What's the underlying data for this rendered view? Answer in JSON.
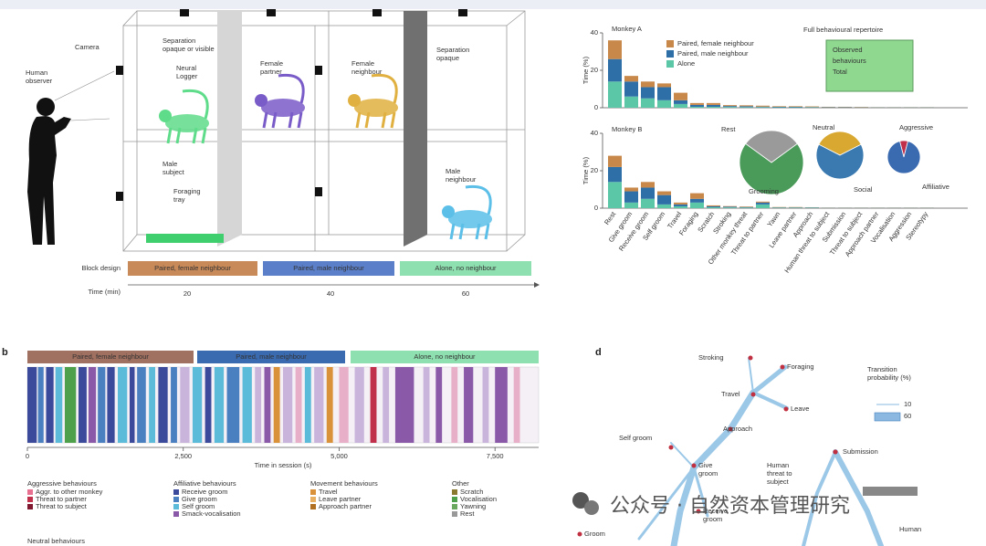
{
  "panel_a": {
    "labels": {
      "camera": "Camera",
      "observer": [
        "Human",
        "observer"
      ],
      "separation": [
        "Separation",
        "opaque or visible"
      ],
      "logger": [
        "Neural",
        "Logger"
      ],
      "female_partner": [
        "Female",
        "partner"
      ],
      "female_neighbour": [
        "Female",
        "neighbour"
      ],
      "separation2": [
        "Separation",
        "opaque"
      ],
      "subject": [
        "Male",
        "subject"
      ],
      "tray": [
        "Foraging",
        "tray"
      ],
      "male_neighbour": [
        "Male",
        "neighbour"
      ]
    },
    "block_design": {
      "label": "Block design",
      "blocks": [
        "Paired, female neighbour",
        "Paired, male neighbour",
        "Alone, no neighbour"
      ]
    },
    "time": {
      "label": "Time (min)",
      "ticks": [
        "20",
        "40",
        "60"
      ]
    }
  },
  "chart_data": [
    {
      "type": "bar",
      "title": "Monkey A",
      "ylabel": "Time (%)",
      "ylim": [
        0,
        40
      ],
      "yticks": [
        0,
        20,
        40
      ],
      "legend": "top-left",
      "series": [
        {
          "name": "Alone",
          "color": "#5cc7a6",
          "values": [
            14,
            6,
            5,
            4,
            2,
            0.5,
            0.5,
            0.4,
            0.3,
            0.3,
            0.2,
            0.2,
            0.2,
            0.1,
            0.1,
            0.1,
            0.1,
            0.1,
            0.1,
            0.1
          ]
        },
        {
          "name": "Paired, male neighbour",
          "color": "#2f6fa8",
          "values": [
            12,
            8,
            6,
            7,
            2,
            1,
            1,
            0.5,
            0.5,
            0.3,
            0.3,
            0.3,
            0.2,
            0.2,
            0.2,
            0.1,
            0.1,
            0.1,
            0.1,
            0.1
          ]
        },
        {
          "name": "Paired, female neighbour",
          "color": "#c8884a",
          "values": [
            10,
            3,
            3,
            2,
            4,
            1,
            1,
            0.5,
            0.5,
            0.5,
            0.3,
            0.3,
            0.3,
            0.2,
            0.2,
            0.2,
            0.1,
            0.1,
            0.1,
            0.1
          ]
        }
      ],
      "annotation": "Full behavioural repertoire",
      "box": [
        "Observed",
        "behaviours",
        "Total"
      ]
    },
    {
      "type": "bar",
      "title": "Monkey B",
      "ylabel": "Time (%)",
      "ylim": [
        0,
        40
      ],
      "yticks": [
        0,
        20,
        40
      ],
      "categories": [
        "Rest",
        "Give groom",
        "Receive groom",
        "Self groom",
        "Travel",
        "Foraging",
        "Scratch",
        "Stroking",
        "Other monkey threat",
        "Threat to partner",
        "Yawn",
        "Leave partner",
        "Approach",
        "Human threat to subject",
        "Submission",
        "Threat to subject",
        "Approach partner",
        "Vocalisation",
        "Aggression",
        "Stereotypy"
      ],
      "series": [
        {
          "name": "Alone",
          "color": "#5cc7a6",
          "values": [
            14,
            3,
            5,
            2,
            1,
            3,
            0.5,
            0.4,
            0.3,
            2,
            0.2,
            0.2,
            0.2,
            0.1,
            0.1,
            0.1,
            0.1,
            0.1,
            0.1,
            0.1
          ]
        },
        {
          "name": "Paired, male neighbour",
          "color": "#2f6fa8",
          "values": [
            8,
            6,
            6,
            5,
            1,
            2,
            0.5,
            0.4,
            0.3,
            1,
            0.2,
            0.2,
            0.2,
            0.1,
            0.1,
            0.1,
            0.1,
            0.1,
            0.1,
            0.1
          ]
        },
        {
          "name": "Paired, female neighbour",
          "color": "#c8884a",
          "values": [
            6,
            2,
            3,
            2,
            1,
            3,
            0.5,
            0.3,
            0.3,
            0.5,
            0.2,
            0.2,
            0.1,
            0.1,
            0.1,
            0.1,
            0.1,
            0.1,
            0.1,
            0.1
          ]
        }
      ]
    },
    {
      "type": "pie",
      "categories": [
        "Rest",
        "Grooming"
      ],
      "values": [
        30,
        70
      ],
      "colors": [
        "#9a9a9a",
        "#4a9a5a"
      ]
    },
    {
      "type": "pie",
      "categories": [
        "Neutral",
        "Social"
      ],
      "values": [
        35,
        65
      ],
      "colors": [
        "#d8a830",
        "#3a7ab0"
      ]
    },
    {
      "type": "pie",
      "categories": [
        "Aggressive",
        "Affiliative"
      ],
      "values": [
        8,
        92
      ],
      "colors": [
        "#c0304a",
        "#3a6ab0"
      ]
    }
  ],
  "panel_b": {
    "letter": "b",
    "blocks": [
      "Paired, female neighbour",
      "Paired, male neighbour",
      "Alone, no neighbour"
    ],
    "xlabel": "Time in session (s)",
    "xlim": [
      0,
      8200
    ],
    "xticks": [
      0,
      {
        "value": 2500,
        "label": "2,500"
      },
      {
        "value": 5000,
        "label": "5,000"
      },
      {
        "value": 7500,
        "label": "7,500"
      }
    ],
    "segments": [
      {
        "start": 0,
        "end": 150,
        "color": "#3b4a9a"
      },
      {
        "start": 170,
        "end": 260,
        "color": "#4a7fc0"
      },
      {
        "start": 300,
        "end": 420,
        "color": "#3b4a9a"
      },
      {
        "start": 450,
        "end": 560,
        "color": "#5bbbd8"
      },
      {
        "start": 600,
        "end": 780,
        "color": "#4fa04a"
      },
      {
        "start": 820,
        "end": 950,
        "color": "#3b4a9a"
      },
      {
        "start": 980,
        "end": 1100,
        "color": "#8a5aa8"
      },
      {
        "start": 1130,
        "end": 1250,
        "color": "#4a7fc0"
      },
      {
        "start": 1280,
        "end": 1400,
        "color": "#3b4a9a"
      },
      {
        "start": 1450,
        "end": 1600,
        "color": "#5bbbd8"
      },
      {
        "start": 1640,
        "end": 1720,
        "color": "#3b4a9a"
      },
      {
        "start": 1760,
        "end": 1900,
        "color": "#4a7fc0"
      },
      {
        "start": 1950,
        "end": 2050,
        "color": "#5bbbd8"
      },
      {
        "start": 2100,
        "end": 2250,
        "color": "#3b4a9a"
      },
      {
        "start": 2300,
        "end": 2400,
        "color": "#4a7fc0"
      },
      {
        "start": 2450,
        "end": 2600,
        "color": "#c9b5dc"
      },
      {
        "start": 2650,
        "end": 2800,
        "color": "#5bbbd8"
      },
      {
        "start": 2850,
        "end": 2950,
        "color": "#3b4a9a"
      },
      {
        "start": 3000,
        "end": 3150,
        "color": "#5bbbd8"
      },
      {
        "start": 3200,
        "end": 3400,
        "color": "#4a7fc0"
      },
      {
        "start": 3450,
        "end": 3600,
        "color": "#5bbbd8"
      },
      {
        "start": 3650,
        "end": 3750,
        "color": "#c9b5dc"
      },
      {
        "start": 3800,
        "end": 3900,
        "color": "#8a5aa8"
      },
      {
        "start": 3950,
        "end": 4050,
        "color": "#d9913a"
      },
      {
        "start": 4100,
        "end": 4250,
        "color": "#c9b5dc"
      },
      {
        "start": 4300,
        "end": 4400,
        "color": "#e8b0c8"
      },
      {
        "start": 4450,
        "end": 4550,
        "color": "#5bbbd8"
      },
      {
        "start": 4600,
        "end": 4750,
        "color": "#c9b5dc"
      },
      {
        "start": 4800,
        "end": 4900,
        "color": "#d9913a"
      },
      {
        "start": 5000,
        "end": 5150,
        "color": "#e8b0c8"
      },
      {
        "start": 5250,
        "end": 5400,
        "color": "#c9b5dc"
      },
      {
        "start": 5500,
        "end": 5600,
        "color": "#c0304a"
      },
      {
        "start": 5700,
        "end": 5800,
        "color": "#c9b5dc"
      },
      {
        "start": 5900,
        "end": 6200,
        "color": "#8a5aa8"
      },
      {
        "start": 6350,
        "end": 6450,
        "color": "#c9b5dc"
      },
      {
        "start": 6550,
        "end": 6650,
        "color": "#8a5aa8"
      },
      {
        "start": 6800,
        "end": 6900,
        "color": "#e8b0c8"
      },
      {
        "start": 7000,
        "end": 7150,
        "color": "#8a5aa8"
      },
      {
        "start": 7300,
        "end": 7400,
        "color": "#c9b5dc"
      },
      {
        "start": 7500,
        "end": 7700,
        "color": "#8a5aa8"
      },
      {
        "start": 7800,
        "end": 7900,
        "color": "#e8b0c8"
      }
    ],
    "legend": [
      {
        "title": "Aggressive behaviours",
        "items": [
          {
            "name": "Aggr. to other monkey",
            "color": "#e87090"
          },
          {
            "name": "Threat to partner",
            "color": "#c0304a"
          },
          {
            "name": "Threat to subject",
            "color": "#801830"
          }
        ]
      },
      {
        "title": "Affiliative behaviours",
        "items": [
          {
            "name": "Receive groom",
            "color": "#3b4a9a"
          },
          {
            "name": "Give groom",
            "color": "#4a7fc0"
          },
          {
            "name": "Self groom",
            "color": "#5bbbd8"
          },
          {
            "name": "Smack-vocalisation",
            "color": "#8a5aa8"
          }
        ]
      },
      {
        "title": "Movement behaviours",
        "items": [
          {
            "name": "Travel",
            "color": "#d9913a"
          },
          {
            "name": "Leave partner",
            "color": "#e8b060"
          },
          {
            "name": "Approach partner",
            "color": "#b07020"
          }
        ]
      },
      {
        "title": "Other",
        "items": [
          {
            "name": "Scratch",
            "color": "#8a7a30"
          },
          {
            "name": "Vocalisation",
            "color": "#4fa04a"
          },
          {
            "name": "Yawning",
            "color": "#6aa860"
          },
          {
            "name": "Rest",
            "color": "#999999"
          }
        ]
      },
      {
        "title": "Neutral behaviours",
        "items": []
      }
    ]
  },
  "panel_d": {
    "letter": "d",
    "nodes": [
      [
        "Stroking"
      ],
      [
        "Foraging"
      ],
      [
        "Travel"
      ],
      [
        "Leave"
      ],
      [
        "Approach"
      ],
      [
        "Self groom"
      ],
      [
        "Give",
        "groom"
      ],
      [
        "Submission"
      ],
      [
        "Human",
        "threat to",
        "subject"
      ],
      [
        "Receive",
        "groom"
      ],
      [
        "Groom"
      ],
      [
        "Human"
      ]
    ],
    "legend_title": [
      "Transition",
      "probability (%)"
    ],
    "legend_values": [
      10,
      60
    ]
  },
  "watermark": "公众号 · 自然资本管理研究"
}
